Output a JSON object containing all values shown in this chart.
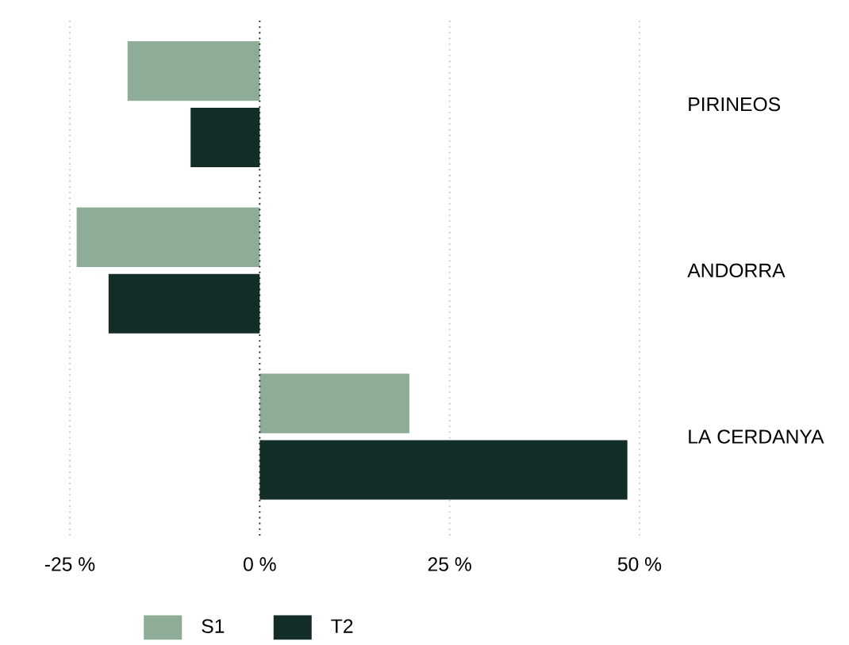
{
  "chart_data": {
    "type": "bar",
    "orientation": "horizontal",
    "categories": [
      "PIRINEOS",
      "ANDORRA",
      "LA CERDANYA"
    ],
    "series": [
      {
        "name": "S1",
        "color": "#8fac96",
        "values": [
          -17.4,
          -24.1,
          19.7
        ]
      },
      {
        "name": "T2",
        "color": "#132d29",
        "values": [
          -9.1,
          -19.9,
          48.4
        ]
      }
    ],
    "xlim": [
      -25,
      50
    ],
    "xticks": [
      {
        "value": -25,
        "label": "-25 %"
      },
      {
        "value": 0,
        "label": "0 %"
      },
      {
        "value": 25,
        "label": "25 %"
      },
      {
        "value": 50,
        "label": "50 %"
      }
    ],
    "ref_lines": [
      {
        "axis": "x",
        "value": 0,
        "color": "#132d29",
        "line_style": "dotted"
      }
    ],
    "grid": "x",
    "legend": "bottom"
  }
}
